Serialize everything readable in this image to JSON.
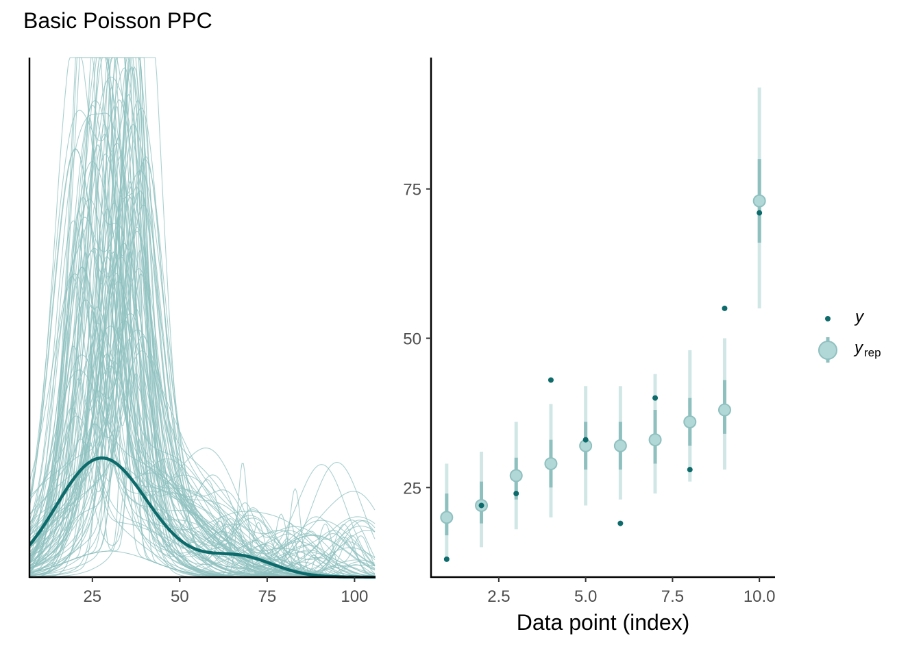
{
  "title": "Basic Poisson PPC",
  "colors": {
    "dark": "#0e6b6b",
    "light": "#8ec0bf",
    "lighter": "#d0e7e6",
    "point": "#b1d7d7"
  },
  "chart_data": [
    {
      "type": "line",
      "subtype": "density-overlay",
      "xlim": [
        7,
        106
      ],
      "ylim": [
        0,
        1
      ],
      "x_ticks": [
        "25",
        "50",
        "75",
        "100"
      ],
      "x_tick_values": [
        25,
        50,
        75,
        100
      ],
      "y_axis_labels_shown": false,
      "observed_density_peak_x": 25,
      "replicated_draws": 100,
      "legend": "none"
    },
    {
      "type": "scatter",
      "subtype": "intervals",
      "xlabel": "Data point (index)",
      "ylabel": "",
      "xlim": [
        0.55,
        10.45
      ],
      "ylim": [
        10,
        97
      ],
      "x_ticks": [
        "2.5",
        "5.0",
        "7.5",
        "10.0"
      ],
      "x_tick_values": [
        2.5,
        5,
        7.5,
        10
      ],
      "y_ticks": [
        "25",
        "50",
        "75"
      ],
      "y_tick_values": [
        25,
        50,
        75
      ],
      "index": [
        1,
        2,
        3,
        4,
        5,
        6,
        7,
        8,
        9,
        10
      ],
      "y": [
        13,
        22,
        24,
        43,
        33,
        19,
        40,
        28,
        55,
        71
      ],
      "yrep_median": [
        20,
        22,
        27,
        29,
        32,
        32,
        33,
        36,
        38,
        73
      ],
      "yrep_inner": [
        [
          17,
          24
        ],
        [
          19,
          26
        ],
        [
          23,
          30
        ],
        [
          25,
          33
        ],
        [
          28,
          36
        ],
        [
          28,
          36
        ],
        [
          29,
          38
        ],
        [
          32,
          40
        ],
        [
          34,
          43
        ],
        [
          66,
          80
        ]
      ],
      "yrep_outer": [
        [
          13,
          29
        ],
        [
          15,
          31
        ],
        [
          18,
          36
        ],
        [
          20,
          39
        ],
        [
          22,
          42
        ],
        [
          23,
          42
        ],
        [
          24,
          44
        ],
        [
          26,
          48
        ],
        [
          28,
          50
        ],
        [
          55,
          92
        ]
      ],
      "legend": [
        {
          "label": "y",
          "sub": ""
        },
        {
          "label": "y",
          "sub": "rep"
        }
      ],
      "legend_position": "right"
    }
  ]
}
